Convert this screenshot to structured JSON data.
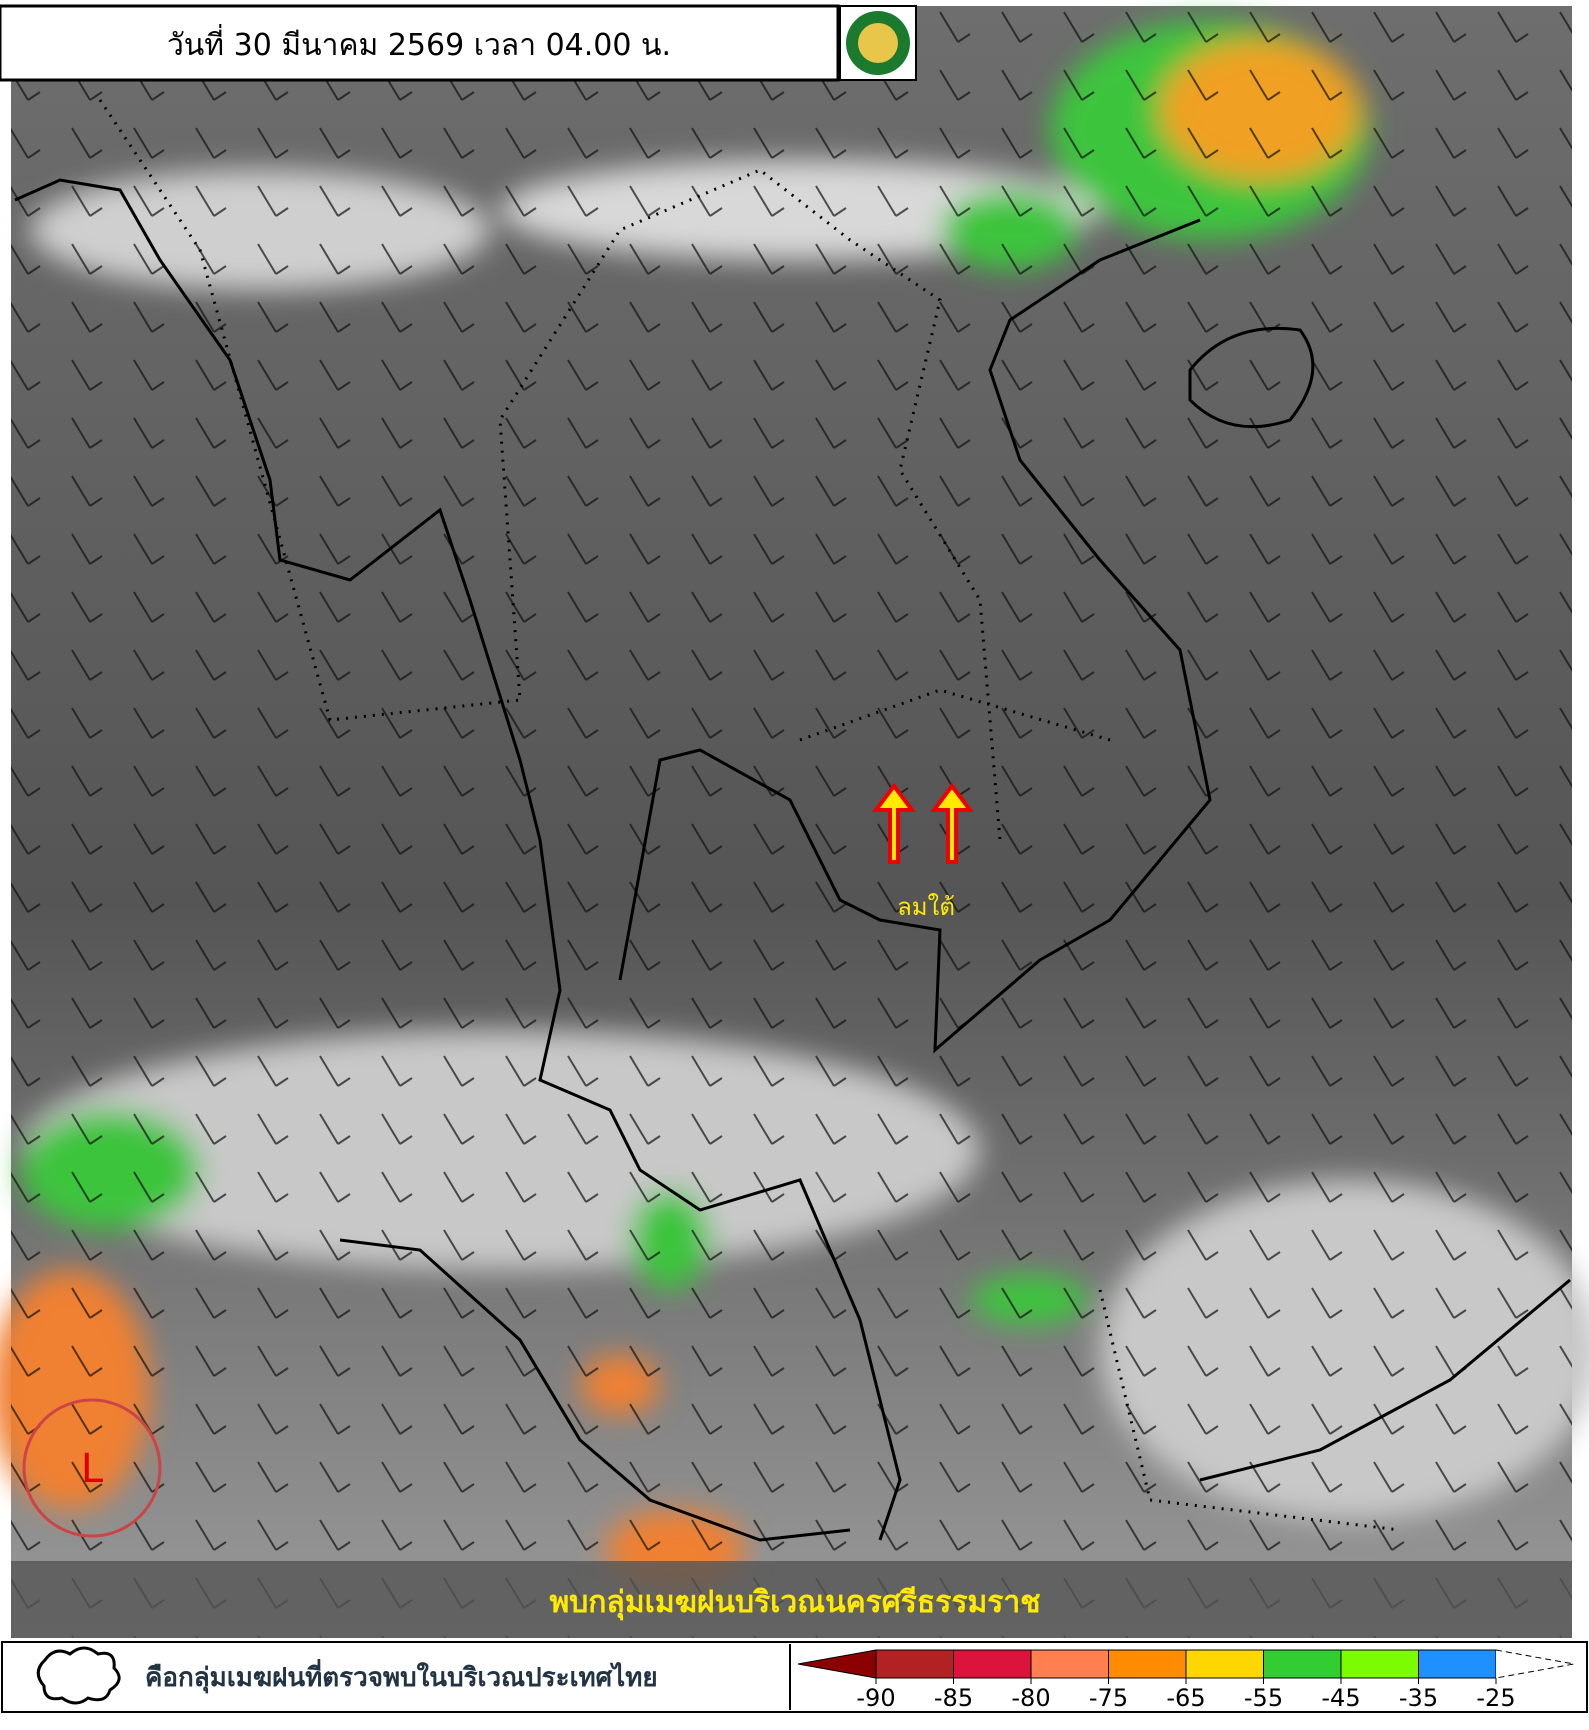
{
  "header": {
    "title": "วันที่ 30 มีนาคม 2569 เวลา 04.00 น."
  },
  "annotations": {
    "wind": "ลมใต้",
    "low": "L"
  },
  "banner": "พบกลุ่มเมฆฝนบริเวณนครศรีธรรมราช",
  "legend": {
    "cloud_text": "คือกลุ่มเมฆฝนที่ตรวจพบในบริเวณประเทศไทย",
    "colorbar": {
      "ticks": [
        -90,
        -85,
        -80,
        -75,
        -65,
        -55,
        -45,
        -35,
        -25
      ],
      "colors": [
        "#b22222",
        "#dc143c",
        "#ff7f50",
        "#ff8c00",
        "#ffd700",
        "#32cd32",
        "#7cfc00",
        "#1e90ff"
      ],
      "low_color": "#8b0000"
    }
  }
}
